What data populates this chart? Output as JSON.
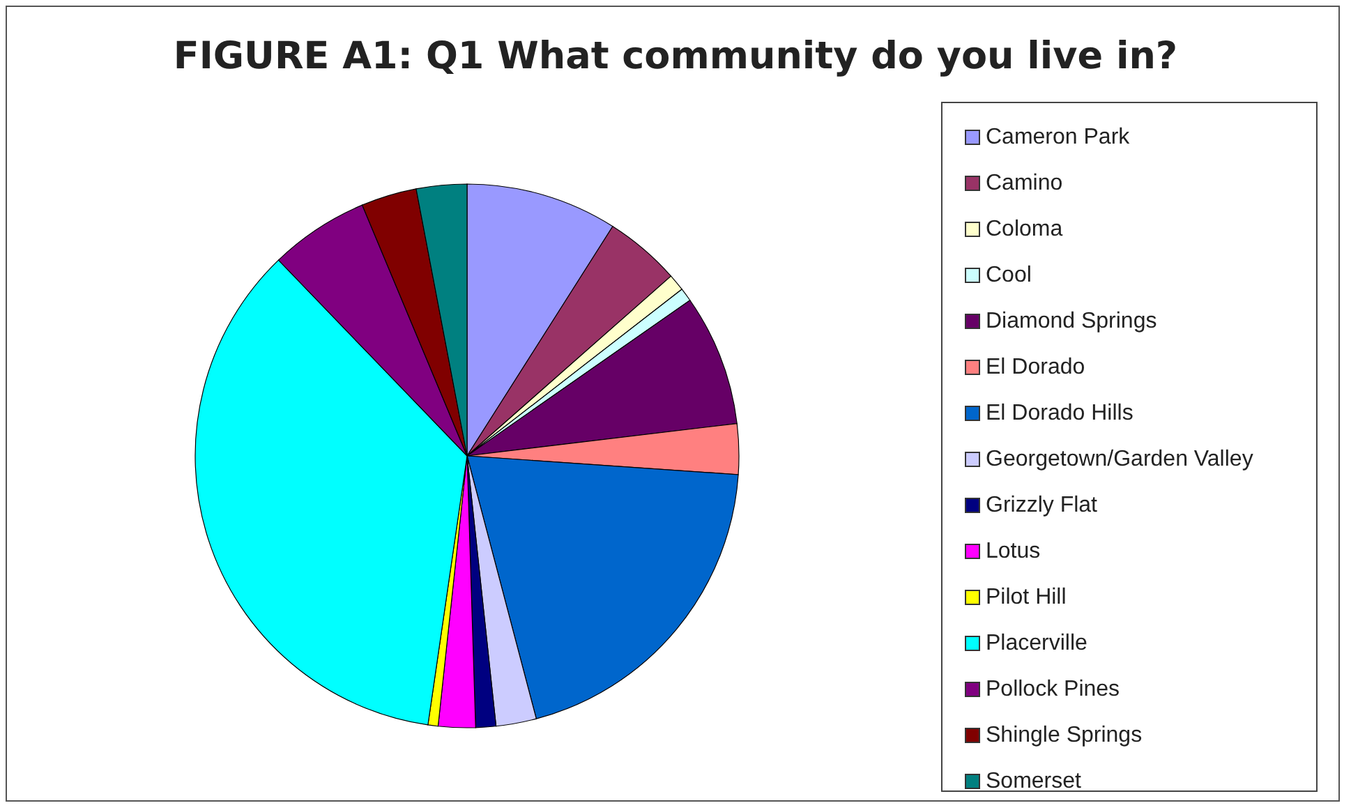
{
  "chart_data": {
    "type": "pie",
    "title": "FIGURE A1: Q1 What community do you live in?",
    "categories": [
      "Cameron Park",
      "Camino",
      "Coloma",
      "Cool",
      "Diamond Springs",
      "El Dorado",
      "El Dorado Hills",
      "Georgetown/Garden Valley",
      "Grizzly Flat",
      "Lotus",
      "Pilot Hill",
      "Placerville",
      "Pollock Pines",
      "Shingle Springs",
      "Somerset"
    ],
    "values": [
      9,
      4.5,
      1,
      0.8,
      7.8,
      3,
      19.8,
      2.4,
      1.2,
      2.2,
      0.6,
      35.5,
      5.9,
      3.3,
      3
    ],
    "colors": [
      "#9999ff",
      "#993366",
      "#ffffcc",
      "#ccffff",
      "#660066",
      "#ff8080",
      "#0066cc",
      "#ccccff",
      "#000080",
      "#ff00ff",
      "#ffff00",
      "#00ffff",
      "#800080",
      "#800000",
      "#008080"
    ],
    "legend": "right"
  }
}
